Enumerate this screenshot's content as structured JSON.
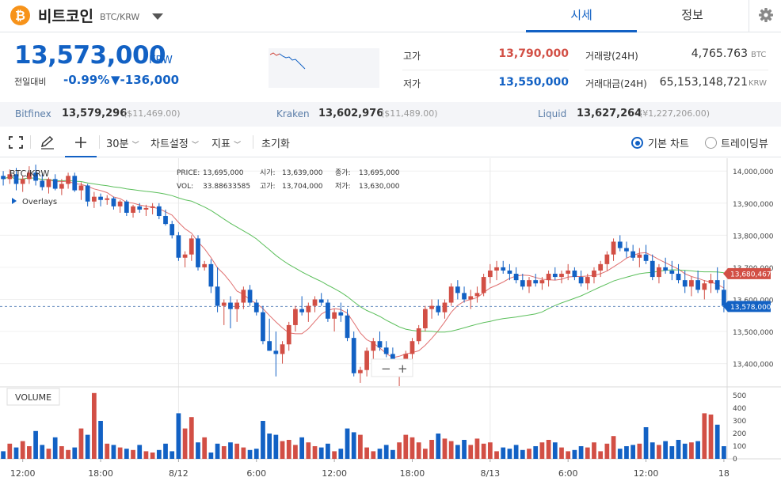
{
  "header": {
    "coin_icon": "₿",
    "coin_name": "비트코인",
    "pair": "BTC/KRW",
    "tab_price": "시세",
    "tab_info": "정보"
  },
  "price": {
    "current": "13,573,000",
    "unit": "KRW",
    "change_label": "전일대비",
    "change_pct": "-0.99%",
    "change_amt": "▼-136,000"
  },
  "stats": {
    "high_label": "고가",
    "high_value": "13,790,000",
    "low_label": "저가",
    "low_value": "13,550,000",
    "volume_label": "거래량(24H)",
    "volume_value": "4,765.763",
    "volume_unit": "BTC",
    "turnover_label": "거래대금(24H)",
    "turnover_value": "65,153,148,721",
    "turnover_unit": "KRW"
  },
  "exchanges": [
    {
      "name": "Bitfinex",
      "price": "13,579,296",
      "usd": "($11,469.00)"
    },
    {
      "name": "Kraken",
      "price": "13,602,976",
      "usd": "($11,489.00)"
    },
    {
      "name": "Liquid",
      "price": "13,627,264",
      "usd": "(¥1,227,206.00)"
    }
  ],
  "toolbar": {
    "interval": "30분",
    "chart_settings": "차트설정",
    "indicators": "지표",
    "reset": "초기화",
    "basic_chart": "기본 차트",
    "tradingview": "트레이딩뷰"
  },
  "colors": {
    "up": "#d24f45",
    "down": "#1261c4",
    "ma_short": "#e07070",
    "ma_long": "#5bbf5b"
  },
  "icons": [
    "bitcoin-icon",
    "chevron-down-icon",
    "gear-icon",
    "fullscreen-icon",
    "pencil-icon",
    "crosshair-icon"
  ],
  "chart_data": {
    "type": "candlestick",
    "symbol_label": "BTC/KRW",
    "overlays_label": "Overlays",
    "info": {
      "price_label": "PRICE:",
      "price": "13,695,000",
      "open_label": "시가:",
      "open": "13,639,000",
      "close_label": "종가:",
      "close": "13,695,000",
      "vol_label": "VOL:",
      "vol": "33.88633585",
      "high_label": "고가:",
      "high": "13,704,000",
      "low_label": "저가:",
      "low": "13,630,000"
    },
    "price_axis": [
      "14,000,000",
      "13,900,000",
      "13,800,000",
      "13,700,000",
      "13,600,000",
      "13,500,000",
      "13,400,000"
    ],
    "price_ticks": [
      14000000,
      13900000,
      13800000,
      13700000,
      13600000,
      13500000,
      13400000
    ],
    "ylim": [
      13330000,
      14040000
    ],
    "badge_ma": {
      "label": "13,680,467",
      "value": 13680467
    },
    "badge_last": {
      "label": "13,578,000",
      "value": 13578000
    },
    "time_labels": [
      "12:00",
      "18:00",
      "8/12",
      "6:00",
      "12:00",
      "18:00",
      "8/13",
      "6:00",
      "12:00",
      "18"
    ],
    "time_label_index": [
      3,
      15,
      27,
      39,
      51,
      63,
      75,
      87,
      99,
      111
    ],
    "volume_label": "VOLUME",
    "volume_axis": [
      "500",
      "400",
      "300",
      "200",
      "100",
      "0"
    ],
    "volume_ticks": [
      500,
      400,
      300,
      200,
      100,
      0
    ],
    "volume_max": 550,
    "zoom_minus": "−",
    "zoom_plus": "+",
    "candles": [
      [
        13985000,
        14000000,
        13955000,
        13975000,
        60
      ],
      [
        13975000,
        14005000,
        13960000,
        13990000,
        120
      ],
      [
        13990000,
        14010000,
        13940000,
        13960000,
        90
      ],
      [
        13960000,
        13985000,
        13935000,
        13975000,
        140
      ],
      [
        13975000,
        14015000,
        13960000,
        13995000,
        100
      ],
      [
        13995000,
        14020000,
        13955000,
        13970000,
        220
      ],
      [
        13970000,
        13990000,
        13940000,
        13950000,
        110
      ],
      [
        13950000,
        13980000,
        13930000,
        13975000,
        80
      ],
      [
        13975000,
        13990000,
        13940000,
        13945000,
        170
      ],
      [
        13945000,
        13975000,
        13925000,
        13960000,
        100
      ],
      [
        13960000,
        13995000,
        13945000,
        13985000,
        70
      ],
      [
        13985000,
        13995000,
        13935000,
        13940000,
        90
      ],
      [
        13940000,
        13965000,
        13910000,
        13955000,
        240
      ],
      [
        13955000,
        13960000,
        13890000,
        13905000,
        190
      ],
      [
        13905000,
        13935000,
        13885000,
        13920000,
        520
      ],
      [
        13920000,
        13930000,
        13890000,
        13910000,
        300
      ],
      [
        13910000,
        13925000,
        13895000,
        13915000,
        120
      ],
      [
        13915000,
        13920000,
        13880000,
        13890000,
        110
      ],
      [
        13890000,
        13910000,
        13870000,
        13905000,
        90
      ],
      [
        13905000,
        13910000,
        13860000,
        13870000,
        80
      ],
      [
        13870000,
        13895000,
        13855000,
        13890000,
        70
      ],
      [
        13890000,
        13900000,
        13870000,
        13880000,
        110
      ],
      [
        13880000,
        13895000,
        13860000,
        13885000,
        60
      ],
      [
        13885000,
        13900000,
        13865000,
        13890000,
        50
      ],
      [
        13890000,
        13900000,
        13850000,
        13860000,
        70
      ],
      [
        13860000,
        13880000,
        13830000,
        13835000,
        120
      ],
      [
        13835000,
        13845000,
        13790000,
        13800000,
        60
      ],
      [
        13800000,
        13810000,
        13720000,
        13730000,
        360
      ],
      [
        13730000,
        13750000,
        13700000,
        13740000,
        240
      ],
      [
        13740000,
        13800000,
        13720000,
        13790000,
        330
      ],
      [
        13790000,
        13800000,
        13690000,
        13700000,
        130
      ],
      [
        13700000,
        13720000,
        13690000,
        13710000,
        170
      ],
      [
        13710000,
        13725000,
        13620000,
        13640000,
        50
      ],
      [
        13640000,
        13700000,
        13560000,
        13580000,
        120
      ],
      [
        13580000,
        13600000,
        13520000,
        13590000,
        100
      ],
      [
        13590000,
        13610000,
        13510000,
        13570000,
        130
      ],
      [
        13570000,
        13600000,
        13530000,
        13590000,
        120
      ],
      [
        13590000,
        13640000,
        13570000,
        13630000,
        90
      ],
      [
        13630000,
        13645000,
        13580000,
        13590000,
        70
      ],
      [
        13590000,
        13600000,
        13550000,
        13560000,
        80
      ],
      [
        13560000,
        13580000,
        13460000,
        13470000,
        300
      ],
      [
        13470000,
        13540000,
        13440000,
        13440000,
        200
      ],
      [
        13440000,
        13500000,
        13360000,
        13430000,
        190
      ],
      [
        13430000,
        13470000,
        13400000,
        13460000,
        140
      ],
      [
        13460000,
        13530000,
        13440000,
        13520000,
        150
      ],
      [
        13520000,
        13580000,
        13500000,
        13570000,
        110
      ],
      [
        13570000,
        13610000,
        13550000,
        13560000,
        170
      ],
      [
        13560000,
        13590000,
        13530000,
        13580000,
        130
      ],
      [
        13580000,
        13610000,
        13560000,
        13600000,
        100
      ],
      [
        13600000,
        13620000,
        13580000,
        13590000,
        90
      ],
      [
        13590000,
        13600000,
        13530000,
        13540000,
        120
      ],
      [
        13540000,
        13570000,
        13500000,
        13560000,
        60
      ],
      [
        13560000,
        13590000,
        13530000,
        13550000,
        80
      ],
      [
        13550000,
        13570000,
        13470000,
        13480000,
        240
      ],
      [
        13480000,
        13500000,
        13360000,
        13370000,
        210
      ],
      [
        13370000,
        13390000,
        13340000,
        13380000,
        190
      ],
      [
        13380000,
        13450000,
        13360000,
        13440000,
        90
      ],
      [
        13440000,
        13480000,
        13410000,
        13470000,
        60
      ],
      [
        13470000,
        13500000,
        13440000,
        13450000,
        80
      ],
      [
        13450000,
        13470000,
        13420000,
        13430000,
        110
      ],
      [
        13430000,
        13450000,
        13380000,
        13390000,
        70
      ],
      [
        13390000,
        13410000,
        13330000,
        13400000,
        130
      ],
      [
        13400000,
        13440000,
        13380000,
        13430000,
        190
      ],
      [
        13430000,
        13480000,
        13410000,
        13470000,
        170
      ],
      [
        13470000,
        13520000,
        13460000,
        13510000,
        130
      ],
      [
        13510000,
        13580000,
        13500000,
        13570000,
        80
      ],
      [
        13570000,
        13600000,
        13540000,
        13580000,
        150
      ],
      [
        13580000,
        13600000,
        13550000,
        13560000,
        200
      ],
      [
        13560000,
        13600000,
        13540000,
        13590000,
        160
      ],
      [
        13590000,
        13650000,
        13580000,
        13640000,
        140
      ],
      [
        13640000,
        13660000,
        13600000,
        13620000,
        110
      ],
      [
        13620000,
        13640000,
        13590000,
        13600000,
        150
      ],
      [
        13600000,
        13630000,
        13570000,
        13610000,
        110
      ],
      [
        13610000,
        13640000,
        13590000,
        13620000,
        160
      ],
      [
        13620000,
        13680000,
        13610000,
        13670000,
        120
      ],
      [
        13670000,
        13710000,
        13650000,
        13690000,
        130
      ],
      [
        13690000,
        13720000,
        13660000,
        13700000,
        60
      ],
      [
        13700000,
        13720000,
        13680000,
        13690000,
        90
      ],
      [
        13690000,
        13710000,
        13660000,
        13680000,
        80
      ],
      [
        13680000,
        13700000,
        13650000,
        13660000,
        110
      ],
      [
        13660000,
        13680000,
        13630000,
        13640000,
        70
      ],
      [
        13640000,
        13670000,
        13620000,
        13660000,
        80
      ],
      [
        13660000,
        13680000,
        13640000,
        13650000,
        100
      ],
      [
        13650000,
        13670000,
        13630000,
        13660000,
        130
      ],
      [
        13660000,
        13690000,
        13640000,
        13680000,
        150
      ],
      [
        13680000,
        13700000,
        13660000,
        13670000,
        130
      ],
      [
        13670000,
        13690000,
        13650000,
        13680000,
        90
      ],
      [
        13680000,
        13710000,
        13660000,
        13690000,
        60
      ],
      [
        13690000,
        13700000,
        13660000,
        13670000,
        70
      ],
      [
        13670000,
        13690000,
        13640000,
        13650000,
        100
      ],
      [
        13650000,
        13680000,
        13630000,
        13670000,
        90
      ],
      [
        13670000,
        13700000,
        13650000,
        13690000,
        130
      ],
      [
        13690000,
        13720000,
        13670000,
        13710000,
        60
      ],
      [
        13710000,
        13750000,
        13690000,
        13740000,
        120
      ],
      [
        13740000,
        13790000,
        13720000,
        13780000,
        180
      ],
      [
        13780000,
        13800000,
        13750000,
        13760000,
        80
      ],
      [
        13760000,
        13780000,
        13730000,
        13750000,
        100
      ],
      [
        13750000,
        13770000,
        13720000,
        13730000,
        110
      ],
      [
        13730000,
        13760000,
        13700000,
        13740000,
        120
      ],
      [
        13740000,
        13770000,
        13710000,
        13720000,
        250
      ],
      [
        13720000,
        13740000,
        13660000,
        13670000,
        130
      ],
      [
        13670000,
        13710000,
        13650000,
        13700000,
        110
      ],
      [
        13700000,
        13730000,
        13680000,
        13690000,
        140
      ],
      [
        13690000,
        13720000,
        13660000,
        13680000,
        100
      ],
      [
        13680000,
        13710000,
        13650000,
        13660000,
        150
      ],
      [
        13660000,
        13690000,
        13620000,
        13640000,
        120
      ],
      [
        13640000,
        13670000,
        13610000,
        13660000,
        130
      ],
      [
        13660000,
        13690000,
        13620000,
        13630000,
        140
      ],
      [
        13630000,
        13660000,
        13600000,
        13650000,
        360
      ],
      [
        13650000,
        13680000,
        13620000,
        13660000,
        350
      ],
      [
        13660000,
        13700000,
        13620000,
        13630000,
        270
      ],
      [
        13630000,
        13660000,
        13560000,
        13580000,
        100
      ]
    ]
  }
}
